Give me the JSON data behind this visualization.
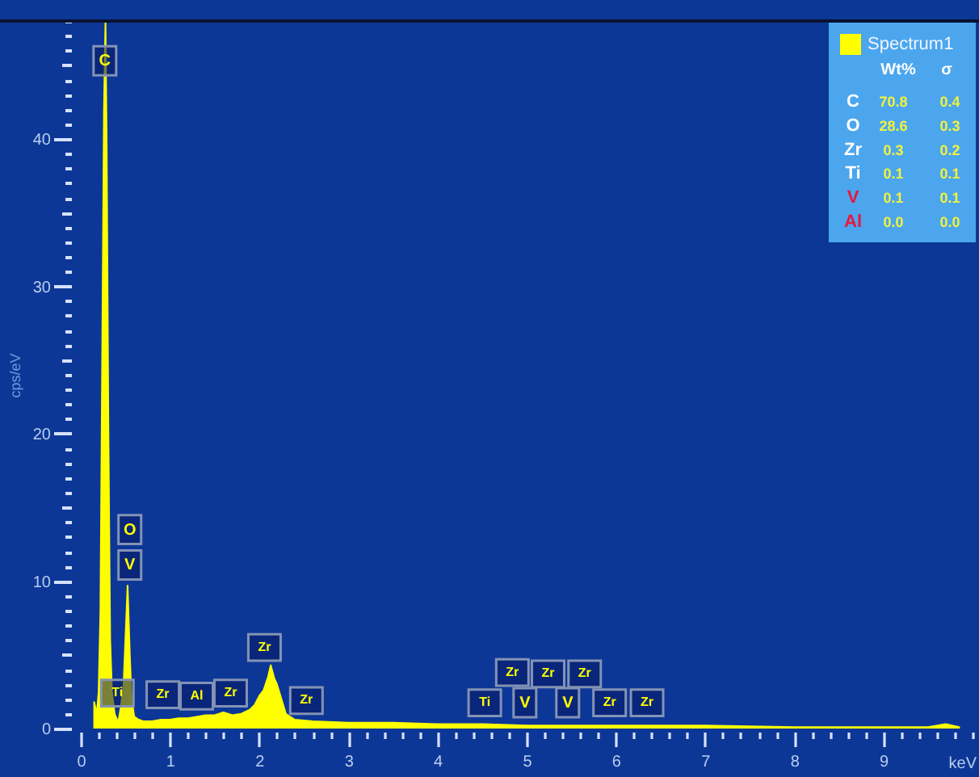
{
  "chart_data": {
    "type": "area",
    "xlabel": "keV",
    "ylabel": "cps/eV",
    "x": [
      0.15,
      0.18,
      0.2,
      0.22,
      0.24,
      0.26,
      0.277,
      0.29,
      0.31,
      0.33,
      0.35,
      0.38,
      0.42,
      0.45,
      0.48,
      0.5,
      0.525,
      0.55,
      0.57,
      0.6,
      0.65,
      0.7,
      0.8,
      0.9,
      1.0,
      1.1,
      1.2,
      1.3,
      1.4,
      1.5,
      1.6,
      1.7,
      1.8,
      1.9,
      1.95,
      2.0,
      2.05,
      2.1,
      2.13,
      2.17,
      2.2,
      2.25,
      2.3,
      2.4,
      2.6,
      3.0,
      3.5,
      4.0,
      4.5,
      5.0,
      5.5,
      6.0,
      7.0,
      8.0,
      9.0,
      9.5,
      9.7,
      9.85
    ],
    "series": [
      {
        "name": "Spectrum1",
        "color": "#ffff00",
        "values": [
          1.8,
          1.0,
          2.5,
          8,
          25,
          42,
          48,
          40,
          20,
          6,
          2.5,
          1.0,
          0.4,
          1.5,
          3,
          6,
          9.7,
          5,
          2,
          0.8,
          0.6,
          0.5,
          0.5,
          0.6,
          0.6,
          0.7,
          0.7,
          0.8,
          0.9,
          0.9,
          1.1,
          0.9,
          1.0,
          1.3,
          1.6,
          2.2,
          2.6,
          3.5,
          4.3,
          3.4,
          3.0,
          2.0,
          1.0,
          0.6,
          0.5,
          0.4,
          0.4,
          0.3,
          0.3,
          0.2,
          0.2,
          0.2,
          0.2,
          0.1,
          0.1,
          0.1,
          0.3,
          0.1
        ]
      }
    ],
    "xlim": [
      0,
      10
    ],
    "xticks": [
      0,
      {
        "value": 0.2,
        "label": null
      },
      {
        "value": 0.4,
        "label": null
      },
      {
        "value": 0.6,
        "label": null
      },
      {
        "value": 0.8,
        "label": null
      },
      1,
      {
        "value": 1.2,
        "label": null
      },
      {
        "value": 1.4,
        "label": null
      },
      {
        "value": 1.6,
        "label": null
      },
      {
        "value": 1.8,
        "label": null
      },
      2,
      {
        "value": 2.2,
        "label": null
      },
      {
        "value": 2.4,
        "label": null
      },
      {
        "value": 2.6,
        "label": null
      },
      {
        "value": 2.8,
        "label": null
      },
      3,
      {
        "value": 3.2,
        "label": null
      },
      {
        "value": 3.4,
        "label": null
      },
      {
        "value": 3.6,
        "label": null
      },
      {
        "value": 3.8,
        "label": null
      },
      4,
      {
        "value": 4.2,
        "label": null
      },
      {
        "value": 4.4,
        "label": null
      },
      {
        "value": 4.6,
        "label": null
      },
      {
        "value": 4.8,
        "label": null
      },
      5,
      {
        "value": 5.2,
        "label": null
      },
      {
        "value": 5.4,
        "label": null
      },
      {
        "value": 5.6,
        "label": null
      },
      {
        "value": 5.8,
        "label": null
      },
      6,
      {
        "value": 6.2,
        "label": null
      },
      {
        "value": 6.4,
        "label": null
      },
      {
        "value": 6.6,
        "label": null
      },
      {
        "value": 6.8,
        "label": null
      },
      7,
      {
        "value": 7.2,
        "label": null
      },
      {
        "value": 7.4,
        "label": null
      },
      {
        "value": 7.6,
        "label": null
      },
      {
        "value": 7.8,
        "label": null
      },
      8,
      {
        "value": 8.2,
        "label": null
      },
      {
        "value": 8.4,
        "label": null
      },
      {
        "value": 8.6,
        "label": null
      },
      {
        "value": 8.8,
        "label": null
      },
      9,
      {
        "value": 9.2,
        "label": null
      },
      {
        "value": 9.4,
        "label": null
      },
      {
        "value": 9.6,
        "label": null
      },
      {
        "value": 9.8,
        "label": null
      },
      {
        "value": 10,
        "label": null
      }
    ],
    "ylim": [
      0,
      48
    ],
    "yticks": [
      0,
      {
        "value": 1,
        "label": null
      },
      {
        "value": 2,
        "label": null
      },
      {
        "value": 3,
        "label": null
      },
      {
        "value": 4,
        "label": null
      },
      {
        "value": 5,
        "label": null
      },
      {
        "value": 6,
        "label": null
      },
      {
        "value": 7,
        "label": null
      },
      {
        "value": 8,
        "label": null
      },
      {
        "value": 9,
        "label": null
      },
      10,
      {
        "value": 11,
        "label": null
      },
      {
        "value": 12,
        "label": null
      },
      {
        "value": 13,
        "label": null
      },
      {
        "value": 14,
        "label": null
      },
      {
        "value": 15,
        "label": null
      },
      {
        "value": 16,
        "label": null
      },
      {
        "value": 17,
        "label": null
      },
      {
        "value": 18,
        "label": null
      },
      {
        "value": 19,
        "label": null
      },
      20,
      {
        "value": 21,
        "label": null
      },
      {
        "value": 22,
        "label": null
      },
      {
        "value": 23,
        "label": null
      },
      {
        "value": 24,
        "label": null
      },
      {
        "value": 25,
        "label": null
      },
      {
        "value": 26,
        "label": null
      },
      {
        "value": 27,
        "label": null
      },
      {
        "value": 28,
        "label": null
      },
      {
        "value": 29,
        "label": null
      },
      30,
      {
        "value": 31,
        "label": null
      },
      {
        "value": 32,
        "label": null
      },
      {
        "value": 33,
        "label": null
      },
      {
        "value": 34,
        "label": null
      },
      {
        "value": 35,
        "label": null
      },
      {
        "value": 36,
        "label": null
      },
      {
        "value": 37,
        "label": null
      },
      {
        "value": 38,
        "label": null
      },
      {
        "value": 39,
        "label": null
      },
      40,
      {
        "value": 41,
        "label": null
      },
      {
        "value": 42,
        "label": null
      },
      {
        "value": 43,
        "label": null
      },
      {
        "value": 44,
        "label": null
      },
      {
        "value": 45,
        "label": null
      },
      {
        "value": 46,
        "label": null
      },
      {
        "value": 47,
        "label": null
      },
      {
        "value": 48,
        "label": null
      }
    ],
    "grid": false,
    "legend": "top right",
    "annotations": [
      {
        "text": "C",
        "x": 0.27,
        "y": 45.3
      },
      {
        "text": "O",
        "x": 0.55,
        "y": 13.5
      },
      {
        "text": "V",
        "x": 0.55,
        "y": 11.1
      },
      {
        "text": "Ti",
        "x": 0.41,
        "y": 2.4
      },
      {
        "text": "Zr",
        "x": 0.92,
        "y": 2.3
      },
      {
        "text": "Al",
        "x": 1.3,
        "y": 2.2
      },
      {
        "text": "Zr",
        "x": 1.68,
        "y": 2.4
      },
      {
        "text": "Zr",
        "x": 2.06,
        "y": 5.5
      },
      {
        "text": "Zr",
        "x": 2.53,
        "y": 1.9
      },
      {
        "text": "Ti",
        "x": 4.53,
        "y": 1.75
      },
      {
        "text": "Zr",
        "x": 4.84,
        "y": 3.8
      },
      {
        "text": "V",
        "x": 4.98,
        "y": 1.75
      },
      {
        "text": "Zr",
        "x": 5.24,
        "y": 3.7
      },
      {
        "text": "V",
        "x": 5.46,
        "y": 1.75
      },
      {
        "text": "Zr",
        "x": 5.65,
        "y": 3.7
      },
      {
        "text": "Zr",
        "x": 5.93,
        "y": 1.75
      },
      {
        "text": "Zr",
        "x": 6.35,
        "y": 1.75
      },
      "Wt%",
      "σ",
      "C",
      "70.8",
      "0.4",
      "O",
      "28.6",
      "0.3",
      "Zr",
      "0.3",
      "0.2",
      "Ti",
      "0.1",
      "0.1",
      "V",
      "0.1",
      "0.1",
      "Al",
      "0.0",
      "0.0"
    ]
  }
}
